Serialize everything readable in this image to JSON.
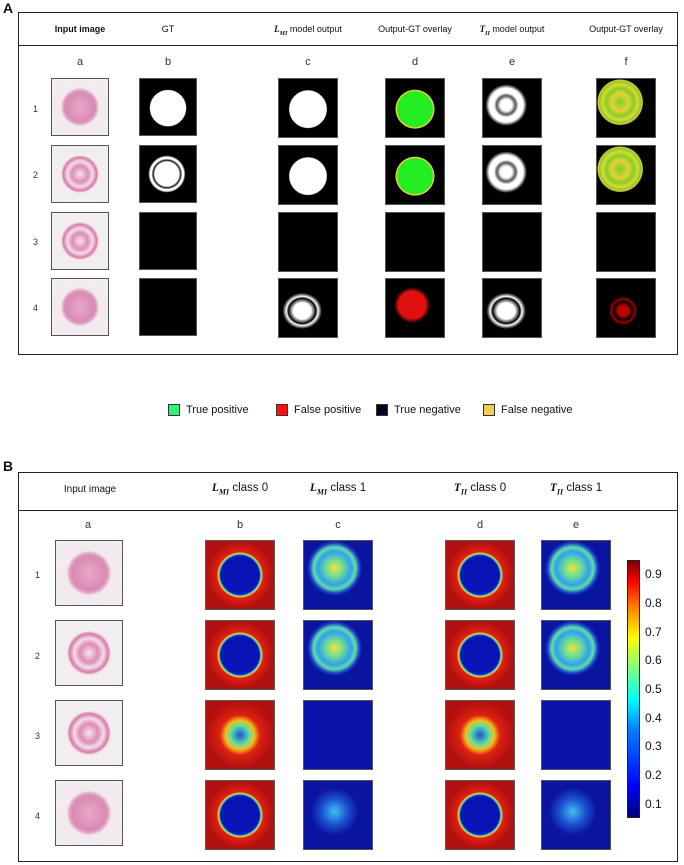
{
  "panel_a": {
    "label": "A",
    "headers": {
      "input": "Input image",
      "gt": "GT",
      "lmi_pre": "L",
      "lmi_sub": "MI",
      "lmi_post": " model output",
      "overlay1": "Output-GT overlay",
      "tii_pre": "T",
      "tii_sub": "II",
      "tii_post": " model output",
      "overlay2": "Output-GT overlay"
    },
    "columns": [
      "a",
      "b",
      "c",
      "d",
      "e",
      "f"
    ],
    "rows": [
      "1",
      "2",
      "3",
      "4"
    ]
  },
  "legend": [
    {
      "label": "True positive",
      "color": "#33ee77"
    },
    {
      "label": "False positive",
      "color": "#ff1111"
    },
    {
      "label": "True negative",
      "color": "#000022"
    },
    {
      "label": "False negative",
      "color": "#f2cc55"
    }
  ],
  "panel_b": {
    "label": "B",
    "headers": {
      "input": "Input image",
      "lmi": "L",
      "lmi_sub": "MI",
      "class0": " class 0",
      "class1": " class 1",
      "tii": "T",
      "tii_sub": "II"
    },
    "columns": [
      "a",
      "b",
      "c",
      "d",
      "e"
    ],
    "rows": [
      "1",
      "2",
      "3",
      "4"
    ],
    "colorbar": {
      "ticks": [
        "0.9",
        "0.8",
        "0.7",
        "0.6",
        "0.5",
        "0.4",
        "0.3",
        "0.2",
        "0.1"
      ],
      "min": 0.05,
      "max": 0.95
    }
  }
}
